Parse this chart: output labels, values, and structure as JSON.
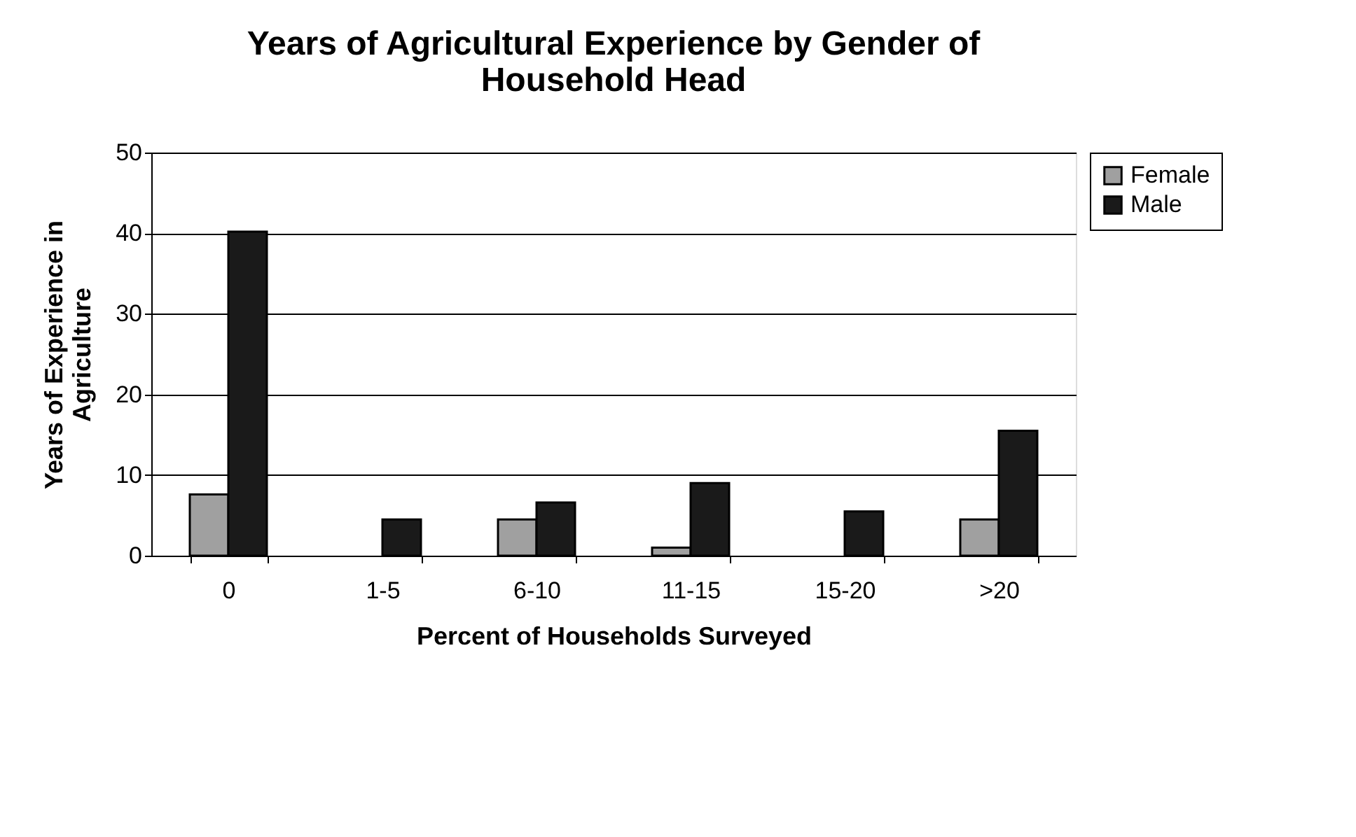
{
  "chart_data": {
    "type": "bar",
    "title": [
      "Years of Agricultural Experience by Gender of",
      "Household Head"
    ],
    "xlabel": "Percent of Households Surveyed",
    "ylabel": [
      "Years of Experience in",
      "Agriculture"
    ],
    "categories": [
      "0",
      "1-5",
      "6-10",
      "11-15",
      "15-20",
      ">20"
    ],
    "series": [
      {
        "name": "Female",
        "color": "#a0a0a0",
        "values": [
          7.6,
          null,
          4.5,
          1.0,
          null,
          4.5
        ]
      },
      {
        "name": "Male",
        "color": "#1a1a1a",
        "values": [
          40.2,
          4.5,
          6.6,
          9.0,
          5.5,
          15.5
        ]
      }
    ],
    "ylim": [
      0,
      50
    ],
    "yticks": [
      0,
      10,
      20,
      30,
      40,
      50
    ],
    "grid": "y",
    "legend": "right"
  }
}
